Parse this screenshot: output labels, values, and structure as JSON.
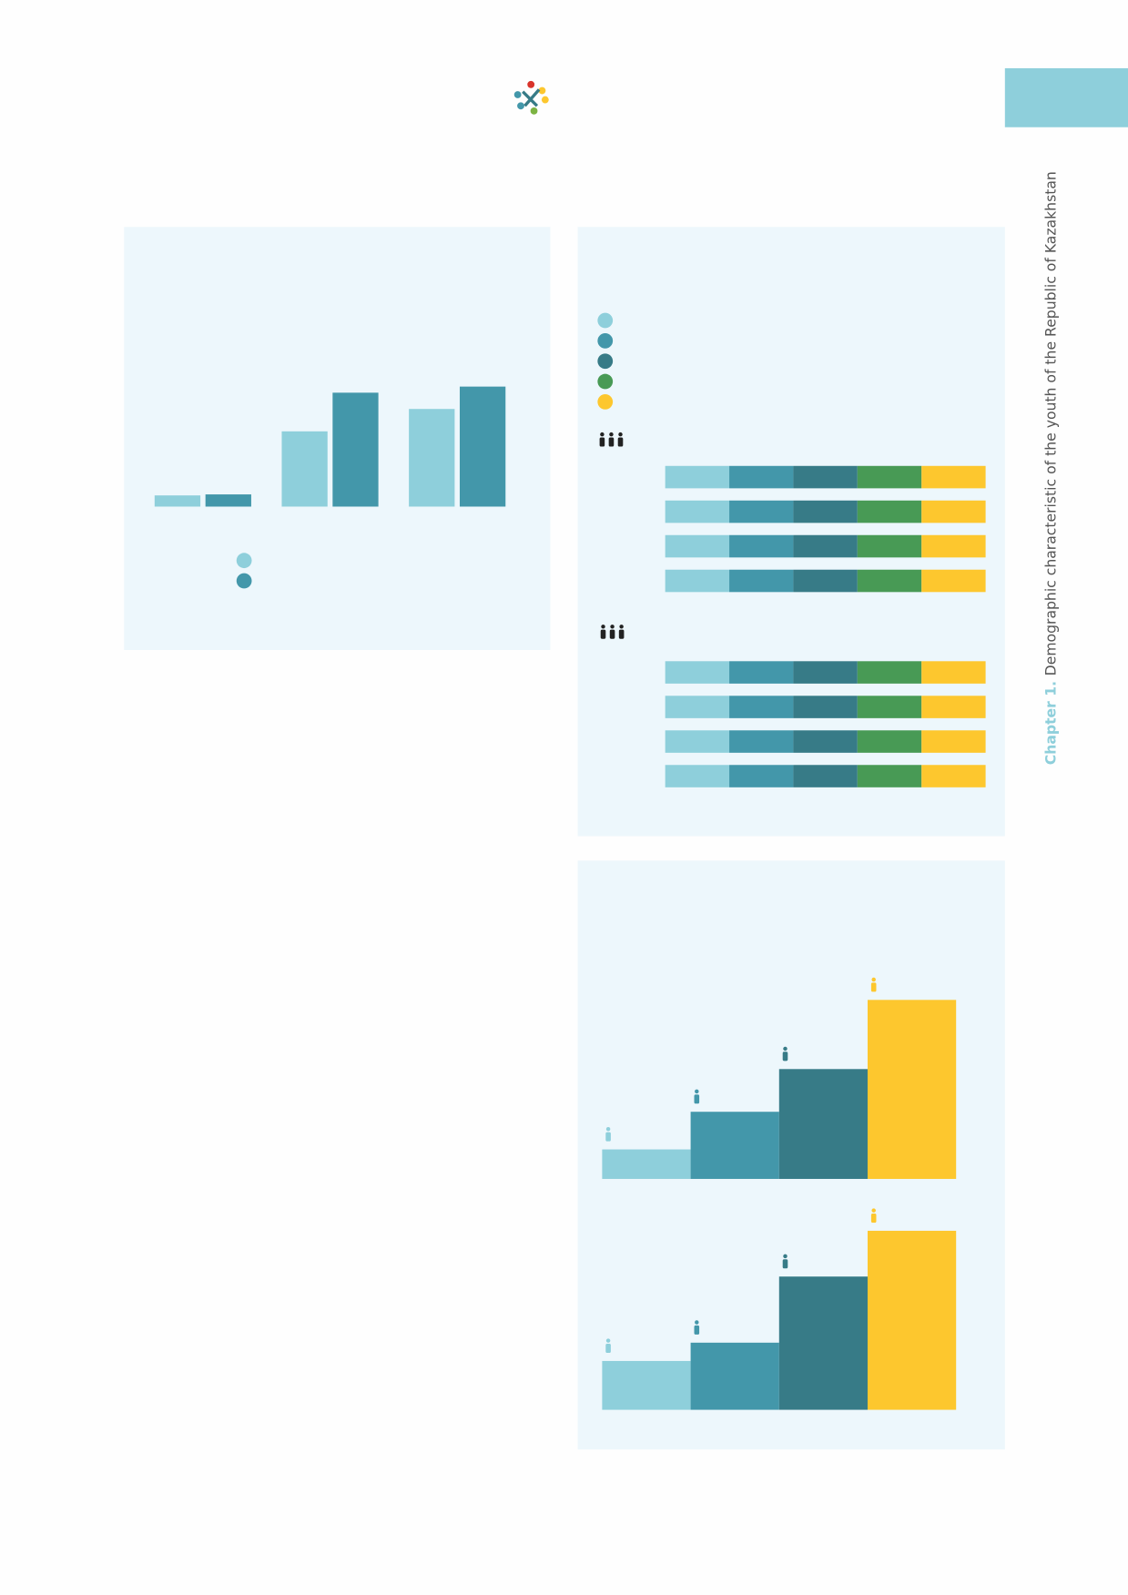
{
  "header": {
    "chapter_label": "Chapter 1.",
    "title": "Demographic characteristic of the youth of the Republic of Kazakhstan"
  },
  "chart_data": [
    {
      "type": "grouped_bar",
      "categories": [
        null,
        null,
        null
      ],
      "ylim": [
        0,
        150
      ],
      "series": [
        {
          "color": "#8ecfdb",
          "values": [
            11,
            74,
            96
          ]
        },
        {
          "color": "#4397aa",
          "values": [
            12,
            112,
            118
          ]
        }
      ]
    },
    {
      "type": "stacked_barh",
      "categories": [
        null,
        null,
        null,
        null,
        null,
        null,
        null,
        null
      ],
      "xlim": [
        0,
        100
      ],
      "series": [
        {
          "color": "#8ecfdb",
          "values": [
            20,
            20,
            20,
            20,
            20,
            20,
            20,
            20
          ]
        },
        {
          "color": "#4397aa",
          "values": [
            20,
            20,
            20,
            20,
            20,
            20,
            20,
            20
          ]
        },
        {
          "color": "#377b87",
          "values": [
            20,
            20,
            20,
            20,
            20,
            20,
            20,
            20
          ]
        },
        {
          "color": "#489a55",
          "values": [
            20,
            20,
            20,
            20,
            20,
            20,
            20,
            20
          ]
        },
        {
          "color": "#fdc72e",
          "values": [
            20,
            20,
            20,
            20,
            20,
            20,
            20,
            20
          ]
        }
      ]
    },
    {
      "type": "step_bar",
      "categories": [
        null,
        null,
        null,
        null
      ],
      "ylim": [
        0,
        200
      ],
      "colors": [
        "#8ecfdb",
        "#4397aa",
        "#377b87",
        "#fdc72e"
      ],
      "values": [
        29,
        66,
        108,
        176
      ]
    },
    {
      "type": "step_bar",
      "categories": [
        null,
        null,
        null,
        null
      ],
      "ylim": [
        0,
        200
      ],
      "colors": [
        "#8ecfdb",
        "#4397aa",
        "#377b87",
        "#fdc72e"
      ],
      "values": [
        48,
        66,
        131,
        176
      ]
    }
  ]
}
